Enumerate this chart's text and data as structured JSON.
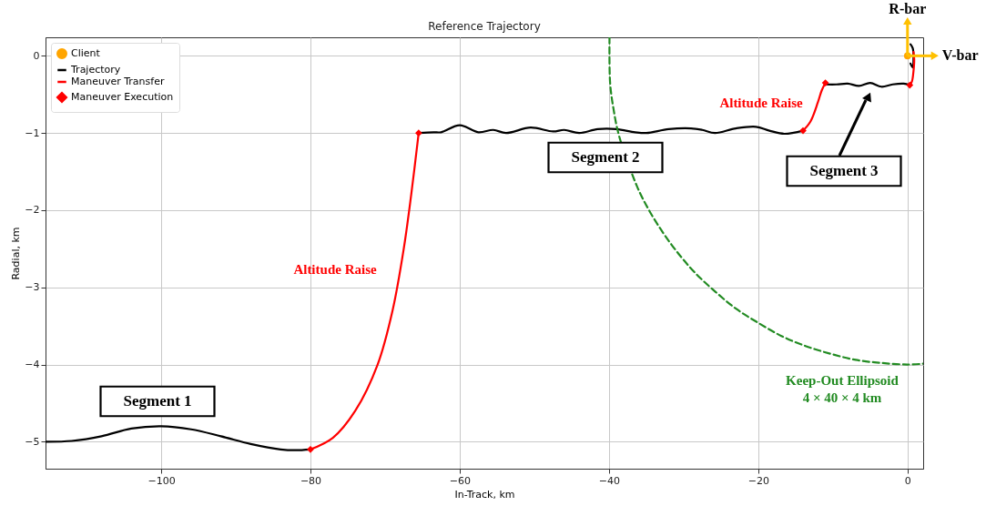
{
  "chart_data": {
    "type": "line",
    "title": "Reference Trajectory",
    "xlabel": "In-Track, km",
    "ylabel": "Radial, km",
    "xlim": [
      -115.5,
      2.1
    ],
    "ylim": [
      -5.35,
      0.24
    ],
    "xticks": [
      -100,
      -80,
      -60,
      -40,
      -20,
      0
    ],
    "yticks": [
      -5,
      -4,
      -3,
      -2,
      -1,
      0
    ],
    "grid": true,
    "legend": "top left",
    "series": [
      {
        "name": "Client",
        "type": "scatter",
        "marker": "circle",
        "color": "#ffa500",
        "x": [
          0
        ],
        "values": [
          0
        ]
      },
      {
        "name": "Trajectory",
        "type": "line",
        "color": "#000000",
        "x": [
          -115.5,
          -112,
          -108,
          -104,
          -100,
          -96,
          -92,
          -88,
          -84,
          -82,
          -80,
          null,
          -65.5,
          -63.5,
          -62.5,
          -60,
          -57.5,
          -55.5,
          -53.8,
          -50.5,
          -47.5,
          -46,
          -44,
          -41.5,
          -39,
          -36.5,
          -35,
          -32,
          -29,
          -27.5,
          -25.8,
          -23,
          -20.3,
          -18.5,
          -16.5,
          -14,
          null,
          -11,
          -9.5,
          -8,
          -6.5,
          -5,
          -3.5,
          -2,
          -0.5,
          0.3,
          null,
          0.4,
          0.7,
          0.8,
          0.7,
          0.4
        ],
        "values": [
          -5.0,
          -4.99,
          -4.93,
          -4.83,
          -4.8,
          -4.84,
          -4.93,
          -5.03,
          -5.1,
          -5.11,
          -5.1,
          null,
          -1.0,
          -0.99,
          -0.99,
          -0.9,
          -0.99,
          -0.96,
          -1.0,
          -0.93,
          -0.98,
          -0.96,
          -1.0,
          -0.95,
          -0.95,
          -0.99,
          -1.0,
          -0.95,
          -0.94,
          -0.96,
          -1.0,
          -0.94,
          -0.92,
          -0.97,
          -1.01,
          -0.97,
          null,
          -0.37,
          -0.37,
          -0.36,
          -0.39,
          -0.35,
          -0.4,
          -0.37,
          -0.36,
          -0.38,
          null,
          0.15,
          0.1,
          -0.05,
          -0.15,
          -0.1
        ]
      },
      {
        "name": "Maneuver Transfer",
        "type": "line",
        "color": "#ff0000",
        "x": [
          -80,
          -77,
          -74,
          -71,
          -69,
          -67.5,
          -66.5,
          -65.5,
          null,
          -14,
          -13,
          -12,
          -11.5,
          -11,
          null,
          0.3,
          0.6,
          0.8,
          0.9,
          0.8
        ],
        "values": [
          -5.1,
          -4.95,
          -4.6,
          -4.0,
          -3.3,
          -2.5,
          -1.8,
          -1.0,
          null,
          -0.97,
          -0.85,
          -0.6,
          -0.45,
          -0.35,
          null,
          -0.38,
          -0.33,
          -0.2,
          -0.05,
          0.05
        ]
      },
      {
        "name": "Maneuver Execution",
        "type": "scatter",
        "marker": "diamond",
        "color": "#ff0000",
        "x": [
          -80,
          -65.5,
          -14,
          -11,
          0.3
        ],
        "values": [
          -5.1,
          -1.0,
          -0.97,
          -0.35,
          -0.38
        ]
      },
      {
        "type": "line",
        "line_style": "dashed",
        "color": "#228b22",
        "x": [
          -39.93,
          -39.85,
          -39.39,
          -38.64,
          -36.25,
          -34.64,
          -32.77,
          -30.64,
          -28.28,
          -25.71,
          -22.94,
          -20,
          -16.9,
          -13.68,
          -10.35,
          -6.95,
          -3.49,
          0,
          2.1
        ],
        "values": [
          0.24,
          -0.35,
          -0.69,
          -1.04,
          -1.69,
          -2.0,
          -2.29,
          -2.57,
          -2.83,
          -3.06,
          -3.28,
          -3.46,
          -3.63,
          -3.76,
          -3.86,
          -3.94,
          -3.98,
          -4.0,
          -3.99
        ]
      }
    ],
    "annotations": [
      "Altitude Raise",
      "Altitude Raise",
      "Segment 1",
      "Segment 2",
      "Segment 3",
      "Keep-Out Ellipsoid\n4 × 40 × 4 km",
      "R-bar",
      "V-bar"
    ]
  }
}
